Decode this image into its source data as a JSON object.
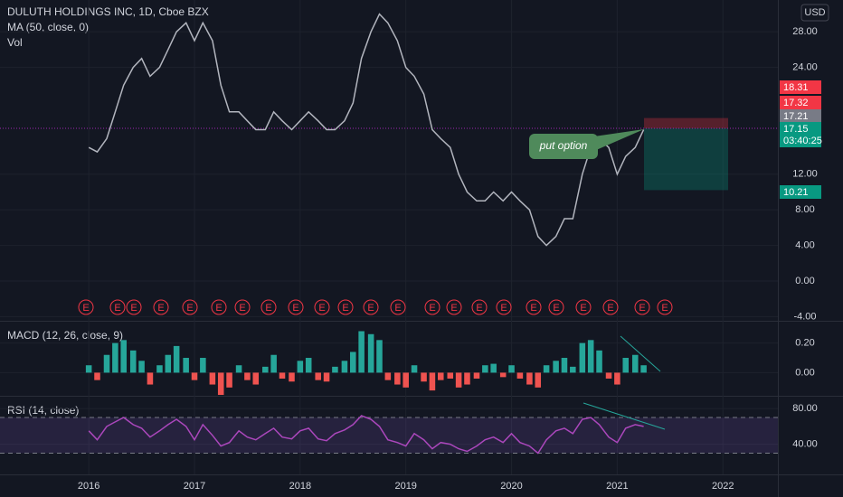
{
  "chart_data": [
    {
      "type": "line",
      "title": "DULUTH HOLDINGS INC, 1D, Cboe BZX",
      "indicator_ma": "MA (50, close, 0)",
      "indicator_vol": "Vol",
      "currency": "USD",
      "color": "#b2b5be",
      "x": [
        2016.0,
        2016.08,
        2016.17,
        2016.25,
        2016.33,
        2016.42,
        2016.5,
        2016.58,
        2016.67,
        2016.75,
        2016.83,
        2016.92,
        2017.0,
        2017.08,
        2017.17,
        2017.25,
        2017.33,
        2017.42,
        2017.5,
        2017.58,
        2017.67,
        2017.75,
        2017.83,
        2017.92,
        2018.0,
        2018.08,
        2018.17,
        2018.25,
        2018.33,
        2018.42,
        2018.5,
        2018.58,
        2018.67,
        2018.75,
        2018.83,
        2018.92,
        2019.0,
        2019.08,
        2019.17,
        2019.25,
        2019.33,
        2019.42,
        2019.5,
        2019.58,
        2019.67,
        2019.75,
        2019.83,
        2019.92,
        2020.0,
        2020.08,
        2020.17,
        2020.25,
        2020.33,
        2020.42,
        2020.5,
        2020.58,
        2020.67,
        2020.75,
        2020.83,
        2020.92,
        2021.0,
        2021.08,
        2021.17,
        2021.25
      ],
      "values": [
        15,
        14.5,
        16,
        19,
        22,
        24,
        25,
        23,
        24,
        26,
        28,
        29,
        27,
        29,
        27,
        22,
        19,
        19,
        18,
        17,
        17,
        19,
        18,
        17,
        18,
        19,
        18,
        17,
        17,
        18,
        20,
        25,
        28,
        30,
        29,
        27,
        24,
        23,
        21,
        17,
        16,
        15,
        12,
        10,
        9,
        9,
        10,
        9,
        10,
        9,
        8,
        5,
        4,
        5,
        7,
        7,
        12,
        15,
        16,
        15,
        12,
        14,
        15,
        17
      ],
      "xlim": [
        2015.16,
        2022.52
      ],
      "xticks": [
        2016,
        2017,
        2018,
        2019,
        2020,
        2021,
        2022
      ],
      "ylim": [
        -4.47,
        31.57
      ],
      "yticks": [
        {
          "value": 28,
          "label": "28.00"
        },
        {
          "value": 24,
          "label": "24.00"
        },
        {
          "value": 12,
          "label": "12.00"
        },
        {
          "value": 8,
          "label": "8.00"
        },
        {
          "value": 4,
          "label": "4.00"
        },
        {
          "value": 0,
          "label": "0.00"
        },
        {
          "value": -4,
          "label": "-4.00"
        }
      ],
      "price_tags": [
        {
          "value": 18.31,
          "color": "#f23645"
        },
        {
          "value": 17.32,
          "color": "#f23645"
        },
        {
          "value": 17.21,
          "color": "#787b86"
        },
        {
          "value": 17.15,
          "color": "#089981",
          "time": "03:40:25"
        },
        {
          "value": 10.21,
          "color": "#089981"
        }
      ],
      "position": {
        "stop": 18.31,
        "entry": 17.15,
        "target": 10.21
      },
      "annotation": "put option",
      "earnings_label": "E"
    },
    {
      "type": "bar",
      "title": "MACD (12, 26, close, 9)",
      "values": [
        0.05,
        -0.05,
        0.12,
        0.2,
        0.22,
        0.15,
        0.08,
        -0.08,
        0.05,
        0.12,
        0.18,
        0.1,
        -0.05,
        0.1,
        -0.08,
        -0.15,
        -0.1,
        0.05,
        -0.05,
        -0.08,
        0.04,
        0.12,
        -0.04,
        -0.06,
        0.08,
        0.1,
        -0.05,
        -0.06,
        0.04,
        0.08,
        0.14,
        0.28,
        0.26,
        0.22,
        -0.05,
        -0.08,
        -0.1,
        0.05,
        -0.06,
        -0.12,
        -0.05,
        -0.04,
        -0.1,
        -0.08,
        -0.04,
        0.05,
        0.06,
        -0.03,
        0.05,
        -0.04,
        -0.08,
        -0.1,
        0.05,
        0.08,
        0.1,
        0.04,
        0.2,
        0.22,
        0.15,
        -0.04,
        -0.08,
        0.1,
        0.12,
        0.05
      ],
      "color_up": "#26a69a",
      "color_down": "#ef5350",
      "ylim": [
        -0.156,
        0.344
      ],
      "yticks": [
        {
          "value": 0.2,
          "label": "0.20"
        },
        {
          "value": 0,
          "label": "0.00"
        }
      ]
    },
    {
      "type": "line",
      "title": "RSI (14, close)",
      "color": "#ab47bc",
      "values": [
        55,
        45,
        60,
        65,
        70,
        62,
        58,
        48,
        55,
        62,
        68,
        60,
        45,
        62,
        50,
        38,
        42,
        55,
        48,
        45,
        52,
        58,
        48,
        46,
        55,
        58,
        46,
        44,
        52,
        56,
        62,
        72,
        68,
        60,
        45,
        42,
        38,
        52,
        45,
        35,
        42,
        40,
        35,
        32,
        38,
        45,
        48,
        42,
        52,
        42,
        38,
        30,
        45,
        55,
        58,
        52,
        68,
        70,
        62,
        48,
        42,
        58,
        62,
        60
      ],
      "ylim": [
        6.2,
        93.3
      ],
      "yticks": [
        {
          "value": 80,
          "label": "80.00"
        },
        {
          "value": 40,
          "label": "40.00"
        }
      ],
      "bands": [
        70,
        30
      ]
    }
  ]
}
